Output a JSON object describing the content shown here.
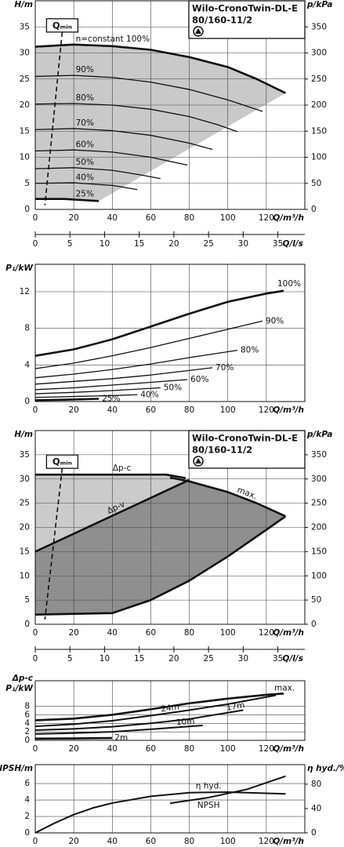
{
  "chart_data": [
    {
      "type": "line",
      "title": [
        "Wilo-CronoTwin-DL-E",
        "80/160-11/2"
      ],
      "ylabel": "H/m",
      "y2label": "p/kPa",
      "xlabel": "Q/m³/h",
      "x2label": "Q/l/s",
      "xlim": [
        0,
        140
      ],
      "xticks": [
        0,
        20,
        40,
        60,
        80,
        100,
        120
      ],
      "x2lim": [
        0,
        38.89
      ],
      "x2ticks": [
        0,
        5,
        10,
        15,
        20,
        25,
        30,
        35
      ],
      "ylim": [
        0,
        40
      ],
      "yticks": [
        0,
        5,
        10,
        15,
        20,
        25,
        30,
        35
      ],
      "y2lim": [
        0,
        400
      ],
      "y2ticks": [
        0,
        50,
        100,
        150,
        200,
        250,
        300,
        350
      ],
      "grid": true,
      "qmin": {
        "label": "Qₘᵢₙ",
        "x": [
          14,
          5
        ],
        "values": [
          34,
          0.8
        ]
      },
      "series": [
        {
          "name": "n=constant 100%",
          "color": "#111",
          "width": 2.6,
          "x": [
            0,
            20,
            40,
            60,
            80,
            100,
            115,
            130
          ],
          "values": [
            31.2,
            31.6,
            31.3,
            30.6,
            29.2,
            27.3,
            25,
            22.3
          ]
        },
        {
          "name": "90%",
          "color": "#111",
          "width": 1.3,
          "x": [
            0,
            20,
            40,
            60,
            80,
            100,
            118
          ],
          "values": [
            25.5,
            25.7,
            25.3,
            24.4,
            23,
            21,
            18.8
          ]
        },
        {
          "name": "80%",
          "color": "#111",
          "width": 1.3,
          "x": [
            0,
            20,
            40,
            60,
            80,
            95,
            105
          ],
          "values": [
            20.2,
            20.3,
            20,
            19.2,
            17.8,
            16.2,
            14.9
          ]
        },
        {
          "name": "70%",
          "color": "#111",
          "width": 1.3,
          "x": [
            0,
            20,
            40,
            60,
            80,
            92
          ],
          "values": [
            15.3,
            15.5,
            15.1,
            14.2,
            12.7,
            11.5
          ]
        },
        {
          "name": "60%",
          "color": "#111",
          "width": 1.3,
          "x": [
            0,
            20,
            40,
            60,
            79
          ],
          "values": [
            11.2,
            11.4,
            11,
            10,
            8.5
          ]
        },
        {
          "name": "50%",
          "color": "#111",
          "width": 1.3,
          "x": [
            0,
            20,
            40,
            55,
            65
          ],
          "values": [
            7.8,
            8,
            7.5,
            6.6,
            5.9
          ]
        },
        {
          "name": "40%",
          "color": "#111",
          "width": 1.3,
          "x": [
            0,
            20,
            40,
            53
          ],
          "values": [
            5,
            5.1,
            4.6,
            3.8
          ]
        },
        {
          "name": "25%",
          "color": "#111",
          "width": 2.6,
          "x": [
            0,
            15,
            33
          ],
          "values": [
            2,
            2,
            1.6
          ]
        }
      ]
    },
    {
      "type": "line",
      "ylabel": "P₁/kW",
      "xlabel": "Q/m³/h",
      "xlim": [
        0,
        140
      ],
      "xticks": [
        0,
        20,
        40,
        60,
        80,
        100,
        120
      ],
      "ylim": [
        0,
        15
      ],
      "yticks": [
        0,
        4,
        8,
        12
      ],
      "grid": true,
      "series": [
        {
          "name": "100%",
          "color": "#111",
          "width": 2.6,
          "x": [
            0,
            20,
            40,
            60,
            80,
            100,
            120,
            129
          ],
          "values": [
            5,
            5.7,
            6.8,
            8.2,
            9.6,
            10.9,
            11.8,
            12.1
          ]
        },
        {
          "name": "90%",
          "color": "#111",
          "width": 1.3,
          "x": [
            0,
            20,
            40,
            60,
            80,
            100,
            118
          ],
          "values": [
            3.6,
            4.2,
            5,
            5.9,
            6.9,
            7.9,
            8.8
          ]
        },
        {
          "name": "80%",
          "color": "#111",
          "width": 1.3,
          "x": [
            0,
            20,
            40,
            60,
            80,
            105
          ],
          "values": [
            2.6,
            3,
            3.5,
            4.1,
            4.8,
            5.6
          ]
        },
        {
          "name": "70%",
          "color": "#111",
          "width": 1.3,
          "x": [
            0,
            20,
            40,
            60,
            80,
            92
          ],
          "values": [
            1.9,
            2.2,
            2.5,
            2.9,
            3.4,
            3.7
          ]
        },
        {
          "name": "60%",
          "color": "#111",
          "width": 1.3,
          "x": [
            0,
            20,
            40,
            60,
            79
          ],
          "values": [
            1.3,
            1.5,
            1.8,
            2.1,
            2.4
          ]
        },
        {
          "name": "50%",
          "color": "#111",
          "width": 1.3,
          "x": [
            0,
            20,
            40,
            65
          ],
          "values": [
            0.85,
            1,
            1.2,
            1.5
          ]
        },
        {
          "name": "40%",
          "color": "#111",
          "width": 1.3,
          "x": [
            0,
            20,
            40,
            53
          ],
          "values": [
            0.45,
            0.55,
            0.65,
            0.75
          ]
        },
        {
          "name": "25%",
          "color": "#111",
          "width": 2.6,
          "x": [
            0,
            15,
            33
          ],
          "values": [
            0.15,
            0.2,
            0.3
          ]
        }
      ]
    },
    {
      "type": "line",
      "title": [
        "Wilo-CronoTwin-DL-E",
        "80/160-11/2"
      ],
      "ylabel": "H/m",
      "y2label": "p/kPa",
      "xlabel": "Q/m³/h",
      "x2label": "Q/l/s",
      "xlim": [
        0,
        140
      ],
      "xticks": [
        0,
        20,
        40,
        60,
        80,
        100,
        120
      ],
      "x2lim": [
        0,
        38.89
      ],
      "x2ticks": [
        0,
        5,
        10,
        15,
        20,
        25,
        30,
        35
      ],
      "ylim": [
        0,
        40
      ],
      "yticks": [
        0,
        5,
        10,
        15,
        20,
        25,
        30,
        35
      ],
      "y2lim": [
        0,
        400
      ],
      "y2ticks": [
        0,
        50,
        100,
        150,
        200,
        250,
        300,
        350
      ],
      "grid": true,
      "qmin": {
        "label": "Qₘᵢₙ",
        "x": [
          14,
          5
        ],
        "values": [
          32.2,
          1
        ]
      },
      "series": [
        {
          "name": "Δp-c",
          "color": "#111",
          "width": 2.6,
          "x": [
            0,
            68,
            78
          ],
          "values": [
            30.9,
            30.9,
            30.2
          ]
        },
        {
          "name": "Δp-v",
          "color": "#111",
          "width": 2.6,
          "x": [
            0,
            80
          ],
          "values": [
            15,
            29.8
          ]
        },
        {
          "name": "max.",
          "color": "#111",
          "width": 2.6,
          "x": [
            70,
            80,
            100,
            115,
            130
          ],
          "values": [
            30.3,
            29.5,
            27.3,
            25,
            22.3
          ]
        },
        {
          "color": "#111",
          "width": 2.6,
          "x": [
            0,
            40,
            60,
            80,
            100,
            120,
            130
          ],
          "values": [
            2,
            2.3,
            5,
            9,
            14,
            19.5,
            22.3
          ]
        }
      ]
    },
    {
      "type": "line",
      "ylabel": [
        "Δp-c",
        "P₁/kW"
      ],
      "xlabel": "Q/m³/h",
      "xlim": [
        0,
        140
      ],
      "xticks": [
        0,
        20,
        40,
        60,
        80,
        100,
        120
      ],
      "ylim": [
        0,
        14
      ],
      "yticks": [
        0,
        2,
        4,
        6,
        8
      ],
      "grid": true,
      "series": [
        {
          "name": "max.",
          "color": "#111",
          "width": 2.6,
          "x": [
            0,
            20,
            40,
            60,
            80,
            100,
            120,
            129
          ],
          "values": [
            4.7,
            5.1,
            6,
            7.3,
            8.7,
            9.8,
            10.7,
            11
          ]
        },
        {
          "name": "24m",
          "color": "#111",
          "width": 2,
          "x": [
            0,
            20,
            40,
            60,
            80,
            100,
            125
          ],
          "values": [
            3.3,
            3.8,
            4.6,
            5.8,
            7.1,
            8.5,
            10.6
          ]
        },
        {
          "name": "17m",
          "color": "#111",
          "width": 2,
          "x": [
            0,
            20,
            40,
            60,
            80,
            108
          ],
          "values": [
            2.4,
            2.7,
            3.2,
            4,
            5,
            7.1
          ]
        },
        {
          "name": "10m",
          "color": "#111",
          "width": 2,
          "x": [
            0,
            20,
            40,
            60,
            87
          ],
          "values": [
            1.5,
            1.7,
            2,
            2.6,
            3.5
          ]
        },
        {
          "name": "2m",
          "color": "#111",
          "width": 2.6,
          "x": [
            0,
            20,
            40
          ],
          "values": [
            0.4,
            0.45,
            0.55
          ]
        }
      ]
    },
    {
      "type": "line",
      "ylabel": "NPSH/m",
      "y2label": "η hyd./%",
      "xlabel": "Q/m³/h",
      "xlim": [
        0,
        140
      ],
      "xticks": [
        0,
        20,
        40,
        60,
        80,
        100,
        120
      ],
      "ylim": [
        0,
        8.3
      ],
      "yticks": [
        0,
        2,
        4,
        6
      ],
      "y2lim": [
        0,
        112
      ],
      "y2ticks": [
        0,
        40,
        80
      ],
      "grid": true,
      "series": [
        {
          "name": "η hyd.",
          "color": "#111",
          "width": 2,
          "axis": "y2",
          "x": [
            0,
            10,
            20,
            30,
            40,
            60,
            80,
            100,
            120,
            130
          ],
          "values": [
            0,
            16,
            30,
            41,
            49,
            60,
            66,
            67,
            65,
            64
          ]
        },
        {
          "name": "NPSH",
          "color": "#111",
          "width": 2,
          "x": [
            70,
            90,
            110,
            130
          ],
          "values": [
            3.6,
            4.3,
            5.3,
            6.9
          ]
        }
      ]
    }
  ]
}
